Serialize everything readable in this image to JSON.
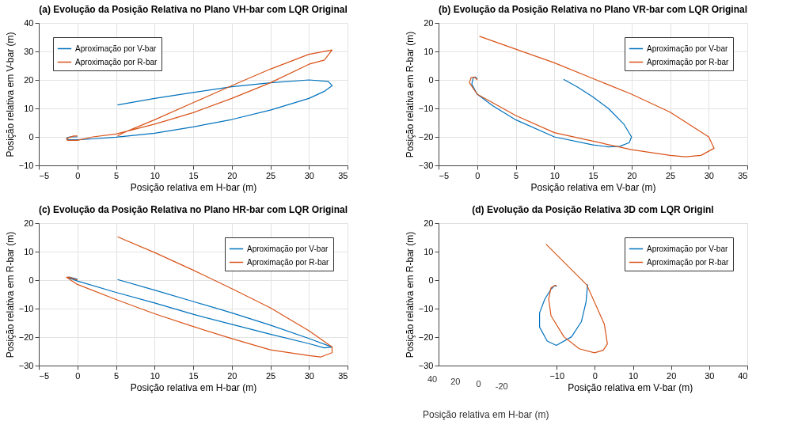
{
  "chart_data": [
    {
      "type": "line",
      "title": "(a) Evolução da Posição Relativa no Plano VH-bar com LQR Original",
      "xlabel": "Posição relativa em H-bar (m)",
      "ylabel": "Posição relativa em V-bar (m)",
      "xlim": [
        -5,
        35
      ],
      "xticks": [
        -5,
        0,
        5,
        10,
        15,
        20,
        25,
        30,
        35
      ],
      "ylim": [
        -10,
        40
      ],
      "yticks": [
        -10,
        0,
        10,
        20,
        30,
        40
      ],
      "grid": true,
      "legend": "top left",
      "series": [
        {
          "name": "Aproximação por V-bar",
          "color": "#0072bd",
          "x": [
            5.2,
            10,
            15,
            20,
            25,
            30,
            32.5,
            33,
            32,
            30,
            25,
            20,
            15,
            10,
            5,
            2,
            0,
            -1.2,
            -1.4,
            -1,
            0
          ],
          "values": [
            11.2,
            13.5,
            15.6,
            17.6,
            19,
            20,
            19.5,
            18,
            16,
            13.5,
            9.4,
            6.1,
            3.5,
            1.3,
            -0.1,
            -0.7,
            -1,
            -1,
            -0.4,
            0,
            0
          ]
        },
        {
          "name": "Aproximação por R-bar",
          "color": "#d95319",
          "x": [
            5.2,
            6,
            10,
            15,
            20,
            25,
            30,
            33,
            32,
            30,
            25,
            20,
            15,
            10,
            5,
            2,
            0,
            -1.3,
            -1.4,
            -0.5,
            0
          ],
          "values": [
            0.3,
            1.5,
            6,
            12,
            18,
            23.8,
            29,
            30.5,
            27,
            25.5,
            19,
            13.5,
            8.5,
            4.5,
            1,
            0,
            -1.2,
            -1.2,
            -0.6,
            0.3,
            0.3
          ]
        }
      ]
    },
    {
      "type": "line",
      "title": "(b) Evolução da Posição Relativa no Plano VR-bar com LQR Original",
      "xlabel": "Posição relativa em V-bar (m)",
      "ylabel": "Posição relativa em R-bar (m)",
      "xlim": [
        -5,
        35
      ],
      "xticks": [
        -5,
        0,
        5,
        10,
        15,
        20,
        25,
        30,
        35
      ],
      "ylim": [
        -30,
        20
      ],
      "yticks": [
        -30,
        -20,
        -10,
        0,
        10,
        20
      ],
      "grid": true,
      "legend": "top right",
      "series": [
        {
          "name": "Aproximação por V-bar",
          "color": "#0072bd",
          "x": [
            11.2,
            13,
            15,
            17,
            19,
            20,
            19.7,
            18.5,
            17,
            15,
            10,
            5,
            2,
            0,
            -0.7,
            -0.5,
            -0.2,
            0
          ],
          "values": [
            0.2,
            -2.5,
            -6,
            -10,
            -15.5,
            -20,
            -22,
            -23.3,
            -23.5,
            -22.8,
            -20,
            -14,
            -9,
            -5,
            -1.5,
            0.8,
            1,
            0.3
          ]
        },
        {
          "name": "Aproximação por R-bar",
          "color": "#d95319",
          "x": [
            0.3,
            5,
            10,
            15,
            20,
            25,
            30,
            30.7,
            29,
            27,
            25,
            20,
            15,
            10,
            5,
            2,
            0,
            -1,
            -0.8,
            -0.3,
            0
          ],
          "values": [
            15.3,
            10.8,
            6,
            0.5,
            -5,
            -11.3,
            -20,
            -24,
            -26.5,
            -27,
            -26.5,
            -24.5,
            -21.5,
            -18.5,
            -12.5,
            -8,
            -5,
            -1,
            0.8,
            1,
            0
          ]
        }
      ]
    },
    {
      "type": "line",
      "title": "(c) Evolução da Posição Relativa no Plano HR-bar com LQR Original",
      "xlabel": "Posição relativa em H-bar (m)",
      "ylabel": "Posição relativa em R-bar (m)",
      "xlim": [
        -5,
        35
      ],
      "xticks": [
        -5,
        0,
        5,
        10,
        15,
        20,
        25,
        30,
        35
      ],
      "ylim": [
        -30,
        20
      ],
      "yticks": [
        -30,
        -20,
        -10,
        0,
        10,
        20
      ],
      "grid": true,
      "legend": "top right",
      "series": [
        {
          "name": "Aproximação por V-bar",
          "color": "#0072bd",
          "x": [
            5.2,
            10,
            15,
            20,
            25,
            30,
            33,
            32,
            30,
            25,
            20,
            15,
            10,
            5,
            0,
            -1.3,
            -1,
            0
          ],
          "values": [
            0.2,
            -3.5,
            -7.5,
            -11.5,
            -15.8,
            -20.5,
            -23.5,
            -23.8,
            -22.3,
            -19,
            -15.5,
            -12,
            -8,
            -4.3,
            -0.3,
            1,
            1,
            0.3
          ]
        },
        {
          "name": "Aproximação por R-bar",
          "color": "#d95319",
          "x": [
            5.2,
            10,
            15,
            20,
            25,
            30,
            33,
            33,
            31.5,
            30,
            25,
            20,
            15,
            10,
            5,
            0,
            -1.4,
            -1,
            0
          ],
          "values": [
            15.2,
            9.7,
            3.5,
            -3,
            -9.7,
            -17.8,
            -23.5,
            -25.5,
            -27,
            -26.5,
            -24.5,
            -20.5,
            -16.3,
            -11.8,
            -6.8,
            -1.5,
            1,
            1,
            0
          ]
        }
      ]
    },
    {
      "type": "line",
      "title": "(d) Evolução da Posição Relativa 3D com LQR Originl",
      "xlabel": "Posição relativa em V-bar (m)",
      "ylabel": "Posição relativa em R-bar (m)",
      "xlim": [
        -41,
        40
      ],
      "xticks": [
        -10,
        0,
        10,
        20,
        30,
        40
      ],
      "ylim": [
        -30,
        20
      ],
      "yticks": [
        -30,
        -20,
        -10,
        0,
        10,
        20
      ],
      "legend": "top right",
      "annotations": [
        "Posição relativa em H-bar (m)",
        "40",
        "20",
        "0",
        "-20"
      ],
      "series": [
        {
          "name": "Aproximação por V-bar",
          "color": "#0072bd",
          "x": [
            -1.9,
            -2.3,
            -3.5,
            -6.1,
            -10.1,
            -12.5,
            -14.5,
            -14.5,
            -13.1,
            -11.5,
            -10.5,
            -10
          ],
          "values": [
            -1.5,
            -7.6,
            -14.5,
            -19.9,
            -22.9,
            -21.4,
            -16.5,
            -11.5,
            -6.6,
            -3.2,
            -1.9,
            -2.2
          ]
        },
        {
          "name": "Aproximação por R-bar",
          "color": "#d95319",
          "x": [
            -12.8,
            -2.1,
            2.5,
            3.3,
            2.2,
            -0.1,
            -4.1,
            -8.1,
            -11.5,
            -12.1,
            -11.5,
            -10.5,
            -10
          ],
          "values": [
            12.6,
            -1.7,
            -15.5,
            -22.4,
            -24.6,
            -25.5,
            -24.1,
            -19.9,
            -12.5,
            -6.6,
            -2.7,
            -1.9,
            -1.9
          ]
        }
      ]
    }
  ]
}
